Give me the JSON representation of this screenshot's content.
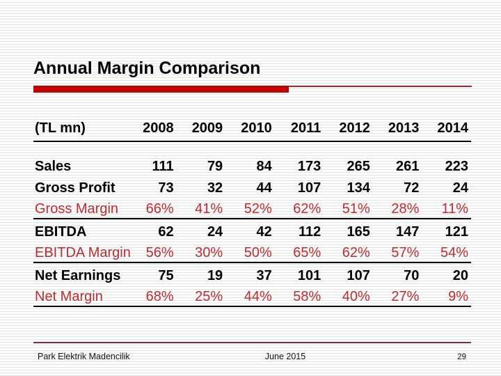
{
  "slide": {
    "title": "Annual Margin Comparison",
    "table": {
      "unit_label": "(TL mn)",
      "years": [
        "2008",
        "2009",
        "2010",
        "2011",
        "2012",
        "2013",
        "2014"
      ],
      "rows": [
        {
          "label": "Sales",
          "style": "metric",
          "values": [
            "111",
            "79",
            "84",
            "173",
            "265",
            "261",
            "223"
          ]
        },
        {
          "label": "Gross Profit",
          "style": "metric",
          "values": [
            "73",
            "32",
            "44",
            "107",
            "134",
            "72",
            "24"
          ]
        },
        {
          "label": "Gross Margin",
          "style": "margin",
          "values": [
            "66%",
            "41%",
            "52%",
            "62%",
            "51%",
            "28%",
            "11%"
          ]
        },
        {
          "label": "EBITDA",
          "style": "metric",
          "values": [
            "62",
            "24",
            "42",
            "112",
            "165",
            "147",
            "121"
          ]
        },
        {
          "label": "EBITDA Margin",
          "style": "margin",
          "values": [
            "56%",
            "30%",
            "50%",
            "65%",
            "62%",
            "57%",
            "54%"
          ]
        },
        {
          "label": "Net Earnings",
          "style": "metric",
          "values": [
            "75",
            "19",
            "37",
            "101",
            "107",
            "70",
            "20"
          ]
        },
        {
          "label": "Net Margin",
          "style": "margin",
          "values": [
            "68%",
            "25%",
            "44%",
            "58%",
            "40%",
            "27%",
            "9%"
          ]
        }
      ]
    },
    "footer": {
      "company": "Park Elektrik Madencilik",
      "date": "June 2015",
      "page_number": "29"
    },
    "colors": {
      "accent_bar": "#c40000",
      "accent_line": "#b22222",
      "red_text": "#c02b2e",
      "footer_line": "#802d39"
    }
  }
}
